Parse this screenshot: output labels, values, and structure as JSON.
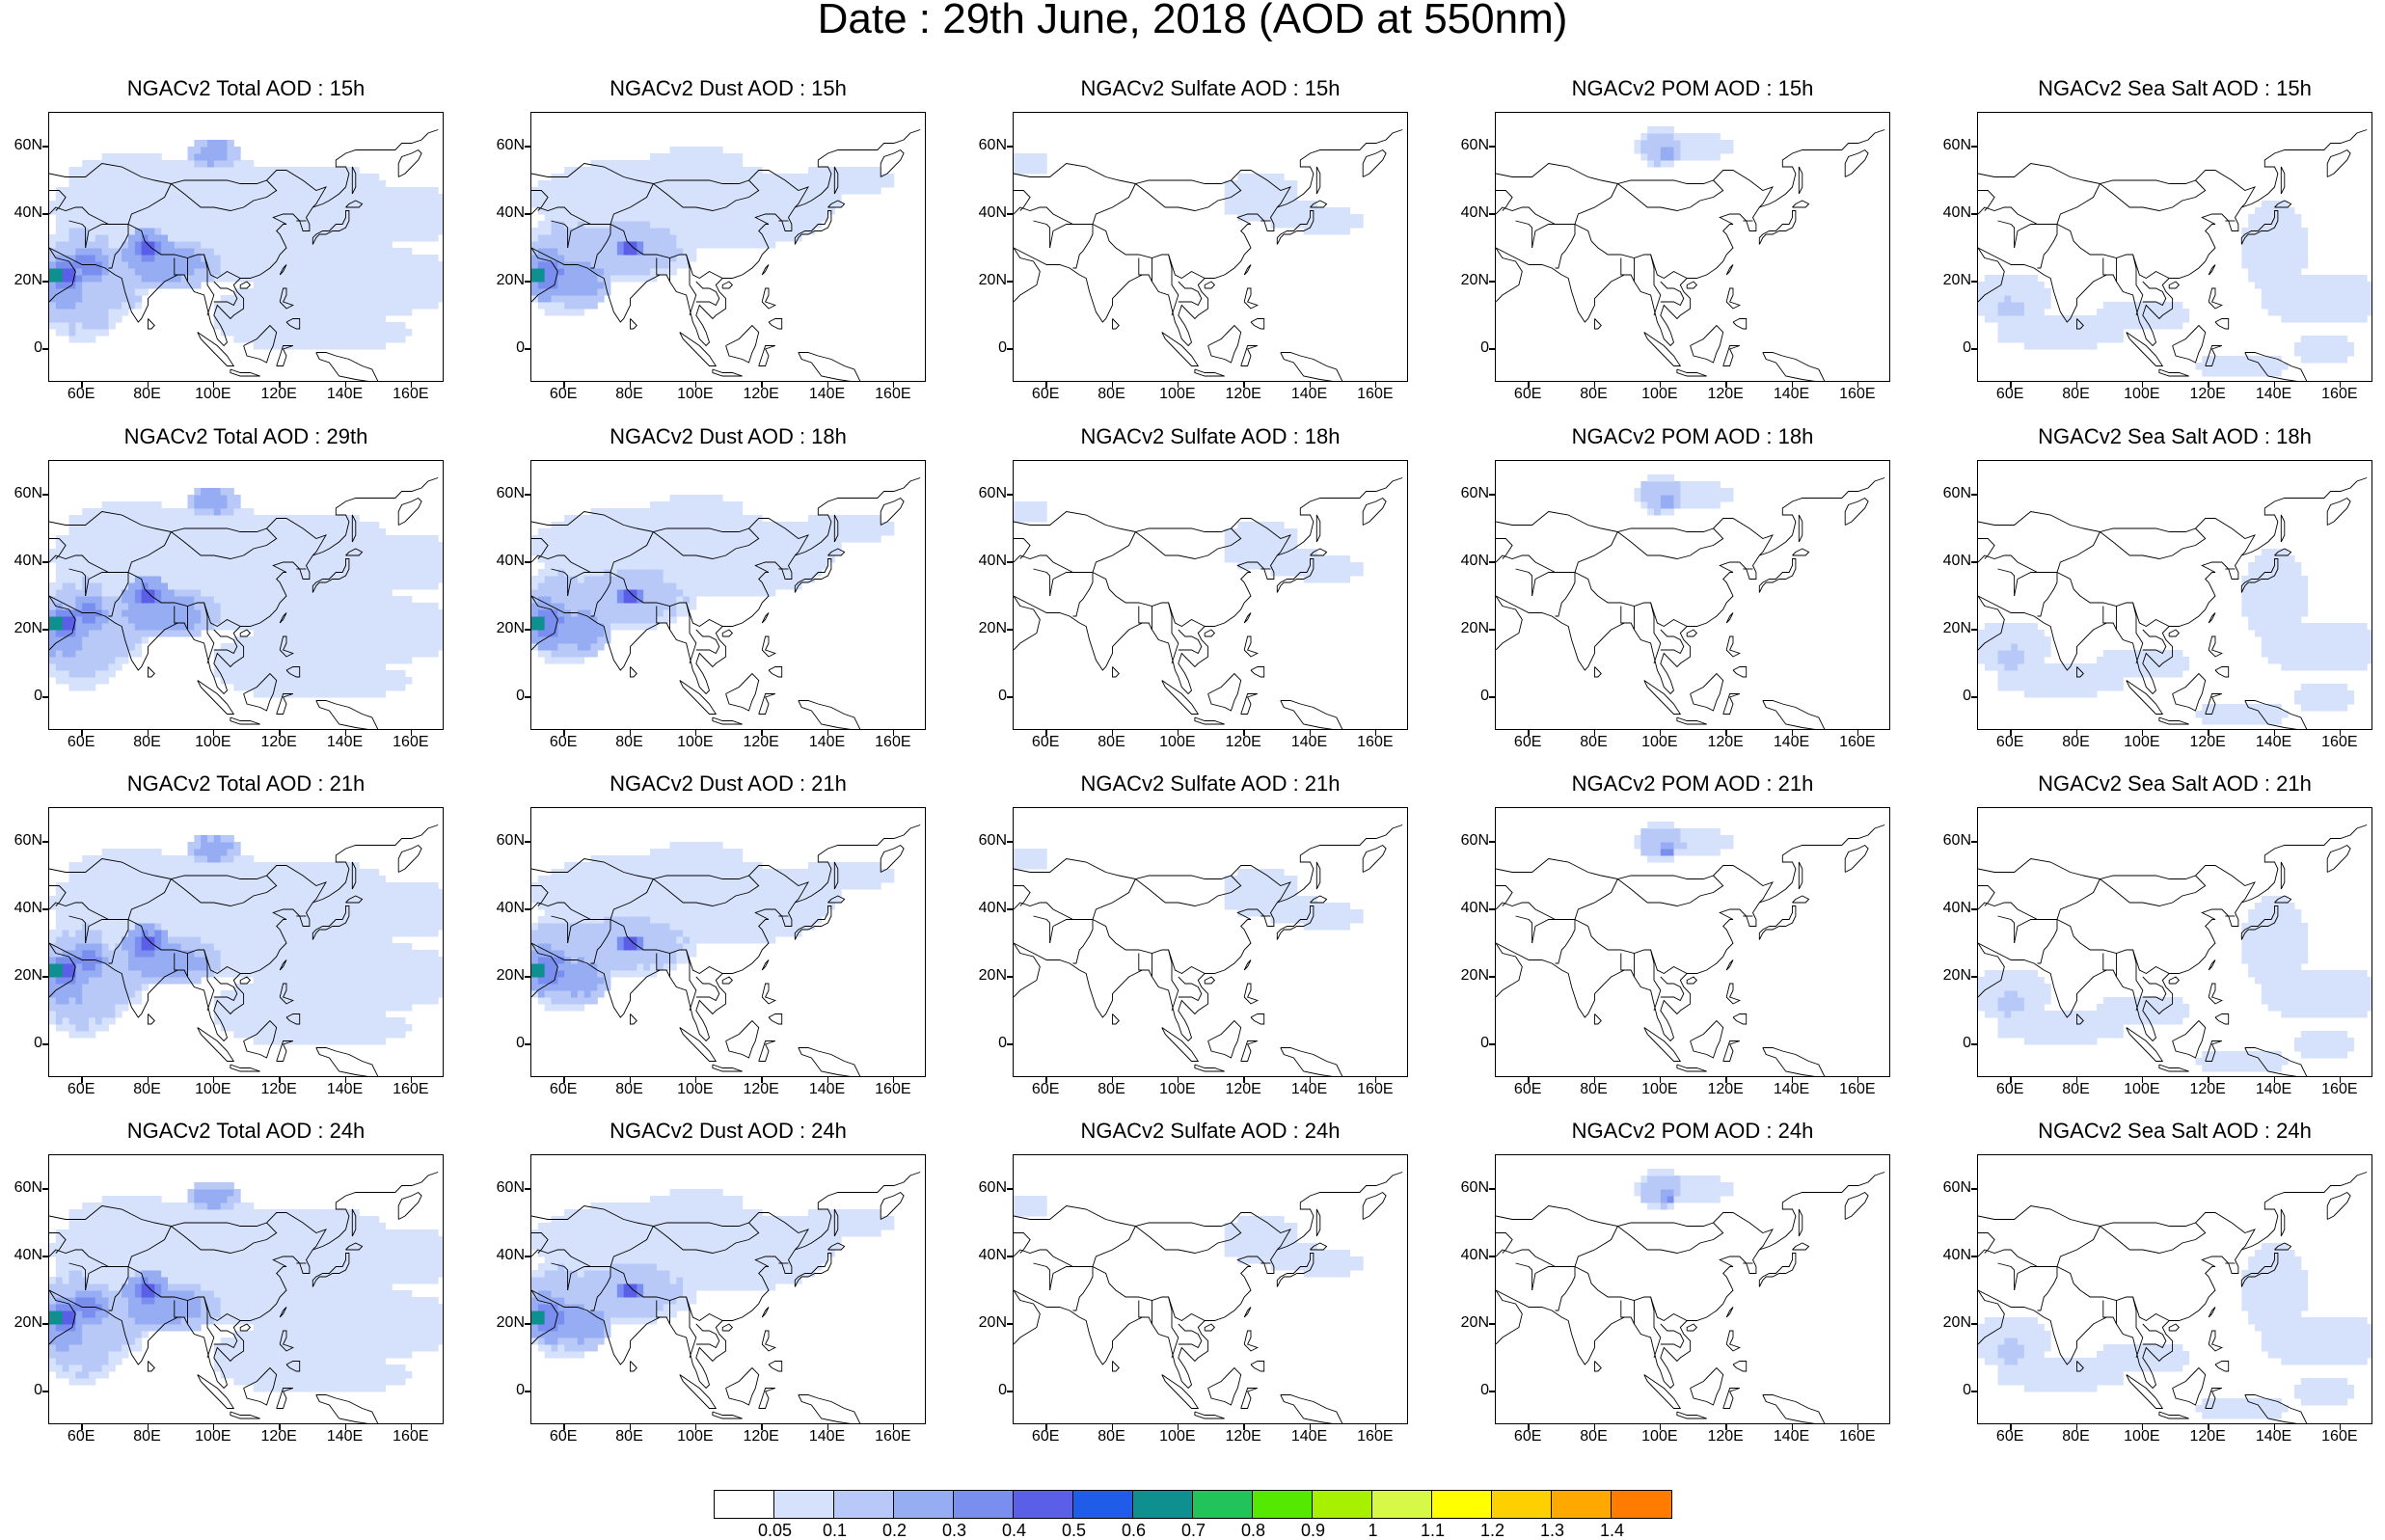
{
  "title": "Date : 29th June, 2018 (AOD at 550nm)",
  "x_ticks": [
    "60E",
    "80E",
    "100E",
    "120E",
    "140E",
    "160E"
  ],
  "y_ticks": [
    "60N",
    "40N",
    "20N",
    "0"
  ],
  "panels": [
    {
      "title": "NGACv2 Total AOD : 15h",
      "species": "total"
    },
    {
      "title": "NGACv2 Dust AOD : 15h",
      "species": "dust"
    },
    {
      "title": "NGACv2 Sulfate AOD : 15h",
      "species": "sulfate"
    },
    {
      "title": "NGACv2 POM AOD : 15h",
      "species": "pom"
    },
    {
      "title": "NGACv2 Sea Salt AOD : 15h",
      "species": "seasalt"
    },
    {
      "title": "NGACv2 Total AOD : 29th",
      "species": "total"
    },
    {
      "title": "NGACv2 Dust AOD : 18h",
      "species": "dust"
    },
    {
      "title": "NGACv2 Sulfate AOD : 18h",
      "species": "sulfate"
    },
    {
      "title": "NGACv2 POM AOD : 18h",
      "species": "pom"
    },
    {
      "title": "NGACv2 Sea Salt AOD : 18h",
      "species": "seasalt"
    },
    {
      "title": "NGACv2 Total AOD : 21h",
      "species": "total"
    },
    {
      "title": "NGACv2 Dust AOD : 21h",
      "species": "dust"
    },
    {
      "title": "NGACv2 Sulfate AOD : 21h",
      "species": "sulfate"
    },
    {
      "title": "NGACv2 POM AOD : 21h",
      "species": "pom"
    },
    {
      "title": "NGACv2 Sea Salt AOD : 21h",
      "species": "seasalt"
    },
    {
      "title": "NGACv2 Total AOD : 24h",
      "species": "total"
    },
    {
      "title": "NGACv2 Dust AOD : 24h",
      "species": "dust"
    },
    {
      "title": "NGACv2 Sulfate AOD : 24h",
      "species": "sulfate"
    },
    {
      "title": "NGACv2 POM AOD : 24h",
      "species": "pom"
    },
    {
      "title": "NGACv2 Sea Salt  AOD : 24h",
      "species": "seasalt"
    }
  ],
  "colorbar": {
    "labels": [
      "0.05",
      "0.1",
      "0.2",
      "0.3",
      "0.4",
      "0.5",
      "0.6",
      "0.7",
      "0.8",
      "0.9",
      "1",
      "1.1",
      "1.2",
      "1.3",
      "1.4"
    ],
    "colors": [
      "#ffffff",
      "#d6e2fb",
      "#b8c9f8",
      "#97adf3",
      "#7a8ef0",
      "#5b5fe8",
      "#1f5ce8",
      "#0e8f90",
      "#22c35a",
      "#55e800",
      "#a6f000",
      "#d8f848",
      "#ffff00",
      "#ffd000",
      "#ffa800",
      "#ff7c00",
      "#ff1a00"
    ]
  },
  "map": {
    "lon_range": [
      50,
      170
    ],
    "lat_range": [
      -10,
      70
    ],
    "land_outline": "#000000"
  }
}
